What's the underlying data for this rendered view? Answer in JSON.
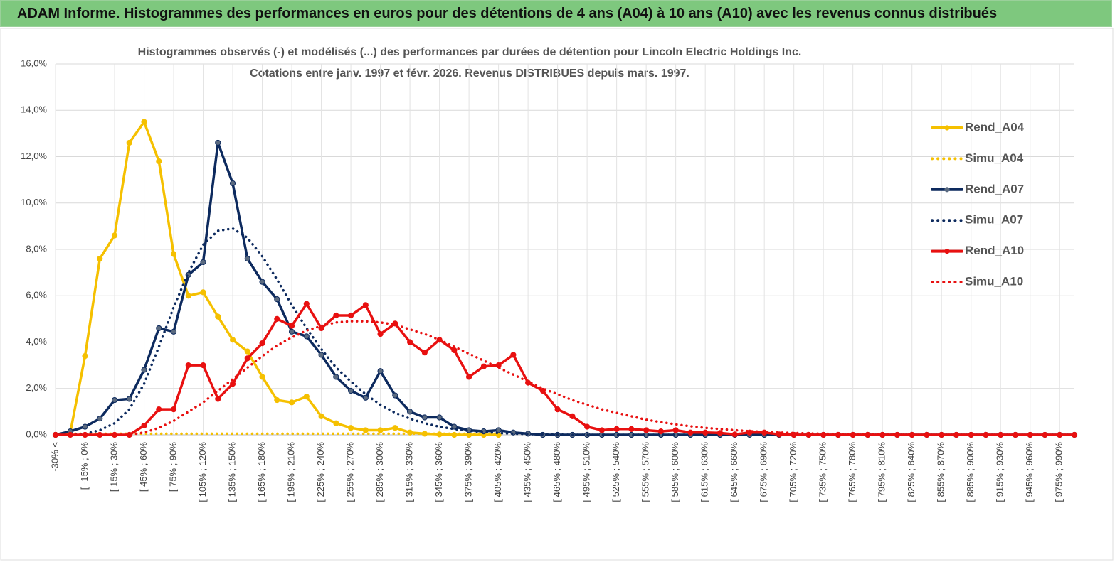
{
  "header": {
    "title": "ADAM Informe. Histogrammes des performances en euros pour des détentions de 4 ans (A04) à 10 ans (A10) avec les revenus connus distribués"
  },
  "chart_data": {
    "type": "line",
    "title": [
      "Histogrammes observés (-) et modélisés (...) des performances par durées de détention pour Lincoln Electric Holdings Inc.",
      "Cotations entre janv. 1997 et févr. 2026. Revenus DISTRIBUES depuis mars. 1997."
    ],
    "categories": [
      "-30% <",
      null,
      "[ -15% ; 0%",
      null,
      "[ 15% ; 30%",
      null,
      "[ 45% ; 60%",
      null,
      "[ 75% ; 90%",
      null,
      "[ 105% ; 120%",
      null,
      "[ 135% ; 150%",
      null,
      "[ 165% ; 180%",
      null,
      "[ 195% ; 210%",
      null,
      "[ 225% ; 240%",
      null,
      "[ 255% ; 270%",
      null,
      "[ 285% ; 300%",
      null,
      "[ 315% ; 330%",
      null,
      "[ 345% ; 360%",
      null,
      "[ 375% ; 390%",
      null,
      "[ 405% ; 420%",
      null,
      "[ 435% ; 450%",
      null,
      "[ 465% ; 480%",
      null,
      "[ 495% ; 510%",
      null,
      "[ 525% ; 540%",
      null,
      "[ 555% ; 570%",
      null,
      "[ 585% ; 600%",
      null,
      "[ 615% ; 630%",
      null,
      "[ 645% ; 660%",
      null,
      "[ 675% ; 690%",
      null,
      "[ 705% ; 720%",
      null,
      "[ 735% ; 750%",
      null,
      "[ 765% ; 780%",
      null,
      "[ 795% ; 810%",
      null,
      "[ 825% ; 840%",
      null,
      "[ 855% ; 870%",
      null,
      "[ 885% ; 900%",
      null,
      "[ 915% ; 930%",
      null,
      "[ 945% ; 960%",
      null,
      "[ 975% ; 990%",
      null
    ],
    "ylim": [
      0,
      16
    ],
    "yticks": [
      {
        "value": 0,
        "label": "0,0%"
      },
      {
        "value": 2,
        "label": "2,0%"
      },
      {
        "value": 4,
        "label": "4,0%"
      },
      {
        "value": 6,
        "label": "6,0%"
      },
      {
        "value": 8,
        "label": "8,0%"
      },
      {
        "value": 10,
        "label": "10,0%"
      },
      {
        "value": 12,
        "label": "12,0%"
      },
      {
        "value": 14,
        "label": "14,0%"
      },
      {
        "value": 16,
        "label": "16,0%"
      }
    ],
    "grid": true,
    "legend": "right",
    "series": [
      {
        "name": "Rend_A04",
        "color": "#f5c000",
        "style": "solid",
        "markers": true,
        "values": [
          0,
          0.1,
          3.4,
          7.6,
          8.6,
          12.6,
          13.5,
          11.8,
          7.8,
          6.0,
          6.15,
          5.1,
          4.1,
          3.6,
          2.5,
          1.5,
          1.4,
          1.65,
          0.8,
          0.5,
          0.3,
          0.2,
          0.2,
          0.3,
          0.1,
          0.05,
          0.02,
          0,
          0,
          0,
          0,
          null,
          null,
          null,
          null,
          null,
          null,
          null,
          null,
          null,
          null,
          null,
          null,
          null,
          null,
          null,
          null,
          null,
          null,
          null,
          null,
          null,
          null,
          null,
          null,
          null,
          null,
          null,
          null,
          null,
          null,
          null,
          null,
          null,
          null,
          null,
          null,
          null,
          null,
          null
        ]
      },
      {
        "name": "Simu_A04",
        "color": "#f5c000",
        "style": "dotted",
        "markers": false,
        "values": [
          null,
          0.05,
          0.05,
          0.05,
          0.05,
          0.05,
          0.05,
          0.05,
          0.05,
          0.05,
          0.05,
          0.05,
          0.05,
          0.05,
          0.05,
          0.05,
          0.05,
          0.05,
          0.05,
          0.05,
          0.05,
          0.05,
          0.05,
          0.05,
          0.05,
          0.05,
          0.05,
          0.05,
          0.05,
          0.05,
          0.05,
          null,
          null,
          null,
          null,
          null,
          null,
          null,
          null,
          null,
          null,
          null,
          null,
          null,
          null,
          null,
          null,
          null,
          null,
          null,
          null,
          null,
          null,
          null,
          null,
          null,
          null,
          null,
          null,
          null,
          null,
          null,
          null,
          null,
          null,
          null,
          null,
          null,
          null,
          null
        ]
      },
      {
        "name": "Rend_A07",
        "color": "#0d2a5e",
        "style": "solid",
        "markers": true,
        "values": [
          0,
          0.15,
          0.35,
          0.7,
          1.5,
          1.55,
          2.8,
          4.6,
          4.45,
          6.9,
          7.45,
          12.6,
          10.85,
          7.6,
          6.6,
          5.85,
          4.45,
          4.25,
          3.45,
          2.5,
          1.9,
          1.6,
          2.75,
          1.7,
          1.0,
          0.75,
          0.75,
          0.35,
          0.2,
          0.15,
          0.2,
          0.1,
          0.05,
          0,
          0,
          0,
          0,
          0,
          0,
          0,
          0,
          0,
          0,
          0,
          0,
          0,
          0,
          0,
          0,
          0,
          0,
          0,
          0,
          0,
          0,
          0,
          0,
          0,
          0,
          0,
          0,
          0,
          0,
          0,
          0,
          0,
          0,
          0,
          0,
          0
        ]
      },
      {
        "name": "Simu_A07",
        "color": "#0d2a5e",
        "style": "dotted",
        "markers": false,
        "values": [
          0,
          0,
          0.05,
          0.2,
          0.5,
          1.1,
          2.2,
          3.8,
          5.5,
          7.0,
          8.2,
          8.8,
          8.9,
          8.5,
          7.7,
          6.7,
          5.6,
          4.6,
          3.7,
          2.9,
          2.3,
          1.75,
          1.3,
          0.95,
          0.7,
          0.5,
          0.35,
          0.25,
          0.17,
          0.12,
          0.08,
          0.05,
          0.03,
          0.02,
          0.01,
          0,
          0,
          0,
          0,
          0,
          0,
          0,
          0,
          0,
          0,
          0,
          0,
          0,
          0,
          0,
          0,
          0,
          0,
          0,
          0,
          0,
          0,
          0,
          0,
          0,
          0,
          0,
          0,
          0,
          0,
          0,
          0,
          0,
          0,
          0
        ]
      },
      {
        "name": "Rend_A10",
        "color": "#e81010",
        "style": "solid",
        "markers": true,
        "values": [
          0,
          0,
          0,
          0,
          0,
          0,
          0.4,
          1.1,
          1.1,
          3.0,
          3.0,
          1.55,
          2.2,
          3.3,
          3.95,
          5.0,
          4.7,
          5.65,
          4.6,
          5.15,
          5.15,
          5.6,
          4.35,
          4.8,
          4.0,
          3.55,
          4.1,
          3.65,
          2.5,
          2.95,
          3.0,
          3.45,
          2.25,
          1.9,
          1.1,
          0.8,
          0.35,
          0.2,
          0.25,
          0.25,
          0.2,
          0.15,
          0.2,
          0.1,
          0.1,
          0.08,
          0.02,
          0.1,
          0.1,
          0.02,
          0,
          0,
          0,
          0,
          0,
          0,
          0,
          0,
          0,
          0,
          0,
          0,
          0,
          0,
          0,
          0,
          0,
          0,
          0,
          0
        ]
      },
      {
        "name": "Simu_A10",
        "color": "#e81010",
        "style": "dotted",
        "markers": false,
        "values": [
          0,
          0,
          0,
          0,
          0,
          0,
          0.1,
          0.3,
          0.6,
          1.0,
          1.4,
          1.9,
          2.4,
          2.9,
          3.4,
          3.85,
          4.2,
          4.5,
          4.7,
          4.85,
          4.9,
          4.9,
          4.85,
          4.75,
          4.55,
          4.35,
          4.1,
          3.8,
          3.5,
          3.2,
          2.9,
          2.6,
          2.3,
          2.0,
          1.75,
          1.5,
          1.3,
          1.1,
          0.95,
          0.8,
          0.65,
          0.55,
          0.45,
          0.37,
          0.3,
          0.25,
          0.2,
          0.16,
          0.13,
          0.1,
          0.08,
          0.06,
          0.05,
          0.04,
          0.03,
          0.02,
          0.02,
          0.01,
          0,
          0,
          0,
          0,
          0,
          0,
          0,
          0,
          0,
          0,
          0,
          0
        ]
      }
    ]
  }
}
